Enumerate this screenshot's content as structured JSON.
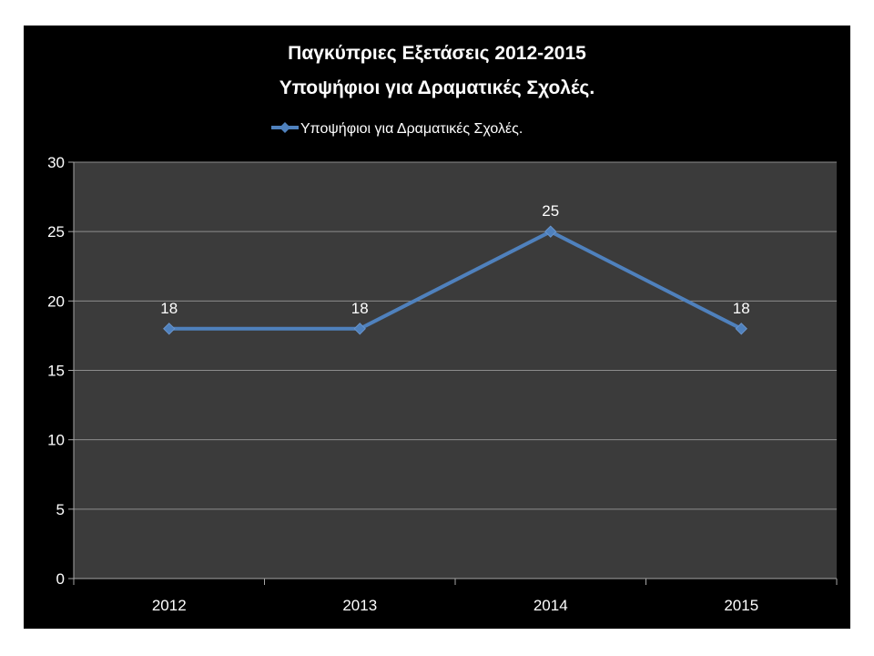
{
  "colors": {
    "background": "#000000",
    "plot_area": "#3b3b3b",
    "gridline": "#8c8c8c",
    "axis": "#a6a6a6",
    "series": "#4f81bd",
    "text": "#ffffff"
  },
  "chart_data": {
    "type": "line",
    "title": [
      "Παγκύπριες Εξετάσεις 2012-2015",
      "Υποψήφιοι για Δραματικές Σχολές."
    ],
    "categories": [
      "2012",
      "2013",
      "2014",
      "2015"
    ],
    "series": [
      {
        "name": "Υποψήφιοι για Δραματικές Σχολές.",
        "values": [
          18,
          18,
          25,
          18
        ],
        "marker": "diamond"
      }
    ],
    "data_labels": [
      "18",
      "18",
      "25",
      "18"
    ],
    "ylim": [
      0,
      30
    ],
    "yticks": [
      0,
      5,
      10,
      15,
      20,
      25,
      30
    ],
    "xlabel": "",
    "ylabel": "",
    "grid": true,
    "legend_position": "top"
  }
}
